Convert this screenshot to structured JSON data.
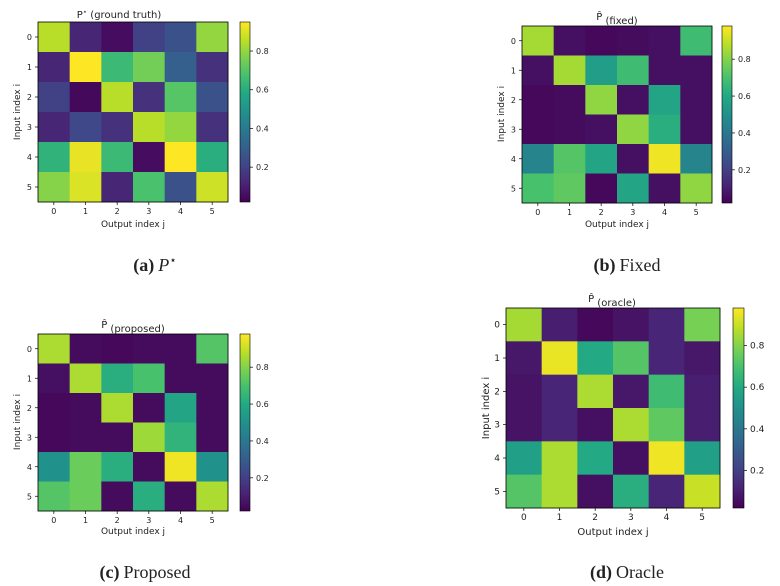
{
  "chart_data": [
    {
      "type": "heatmap",
      "panel": "a",
      "title": "P⋆ (ground truth)",
      "title_main": "P",
      "title_sup": "⋆",
      "title_rest": " (ground truth)",
      "xlabel": "Output index j",
      "ylabel": "Input index i",
      "x_ticks": [
        "0",
        "1",
        "2",
        "3",
        "4",
        "5"
      ],
      "y_ticks": [
        "0",
        "1",
        "2",
        "3",
        "4",
        "5"
      ],
      "colorbar_ticks": [
        0.2,
        0.4,
        0.6,
        0.8
      ],
      "colorbar_labels": [
        "0.2",
        "0.4",
        "0.6",
        "0.8"
      ],
      "vmin": 0.02,
      "vmax": 0.95,
      "values": [
        [
          0.85,
          0.12,
          0.05,
          0.2,
          0.25,
          0.8
        ],
        [
          0.12,
          0.95,
          0.65,
          0.75,
          0.3,
          0.15
        ],
        [
          0.2,
          0.04,
          0.85,
          0.15,
          0.7,
          0.25
        ],
        [
          0.12,
          0.22,
          0.15,
          0.85,
          0.8,
          0.15
        ],
        [
          0.62,
          0.92,
          0.65,
          0.05,
          0.95,
          0.6
        ],
        [
          0.78,
          0.9,
          0.12,
          0.68,
          0.25,
          0.88
        ]
      ],
      "caption_letter": "(a)",
      "caption_text": "P",
      "caption_sup": "⋆"
    },
    {
      "type": "heatmap",
      "panel": "b",
      "title": "P̂ (fixed)",
      "title_main": "P̂",
      "title_sup": "",
      "title_rest": " (fixed)",
      "xlabel": "Output index j",
      "ylabel": "Input index i",
      "x_ticks": [
        "0",
        "1",
        "2",
        "3",
        "4",
        "5"
      ],
      "y_ticks": [
        "0",
        "1",
        "2",
        "3",
        "4",
        "5"
      ],
      "colorbar_ticks": [
        0.2,
        0.4,
        0.6,
        0.8
      ],
      "colorbar_labels": [
        "0.2",
        "0.4",
        "0.6",
        "0.8"
      ],
      "vmin": 0.02,
      "vmax": 0.98,
      "values": [
        [
          0.85,
          0.06,
          0.04,
          0.05,
          0.06,
          0.68
        ],
        [
          0.06,
          0.85,
          0.55,
          0.68,
          0.06,
          0.06
        ],
        [
          0.04,
          0.05,
          0.82,
          0.06,
          0.58,
          0.06
        ],
        [
          0.04,
          0.05,
          0.06,
          0.82,
          0.62,
          0.06
        ],
        [
          0.45,
          0.72,
          0.58,
          0.06,
          0.96,
          0.45
        ],
        [
          0.7,
          0.74,
          0.04,
          0.58,
          0.06,
          0.82
        ]
      ],
      "caption_letter": "(b)",
      "caption_text": "Fixed",
      "caption_sup": ""
    },
    {
      "type": "heatmap",
      "panel": "c",
      "title": "P̂ (proposed)",
      "title_main": "P̂",
      "title_sup": "",
      "title_rest": " (proposed)",
      "xlabel": "Output index j",
      "ylabel": "Input index i",
      "x_ticks": [
        "0",
        "1",
        "2",
        "3",
        "4",
        "5"
      ],
      "y_ticks": [
        "0",
        "1",
        "2",
        "3",
        "4",
        "5"
      ],
      "colorbar_ticks": [
        0.2,
        0.4,
        0.6,
        0.8
      ],
      "colorbar_labels": [
        "0.2",
        "0.4",
        "0.6",
        "0.8"
      ],
      "vmin": 0.02,
      "vmax": 0.98,
      "values": [
        [
          0.86,
          0.05,
          0.04,
          0.05,
          0.05,
          0.72
        ],
        [
          0.06,
          0.86,
          0.62,
          0.7,
          0.05,
          0.05
        ],
        [
          0.04,
          0.05,
          0.86,
          0.05,
          0.58,
          0.05
        ],
        [
          0.04,
          0.05,
          0.05,
          0.84,
          0.64,
          0.05
        ],
        [
          0.5,
          0.76,
          0.62,
          0.05,
          0.96,
          0.5
        ],
        [
          0.72,
          0.76,
          0.05,
          0.62,
          0.05,
          0.86
        ]
      ],
      "caption_letter": "(c)",
      "caption_text": "Proposed",
      "caption_sup": ""
    },
    {
      "type": "heatmap",
      "panel": "d",
      "title": "P̂ (oracle)",
      "title_main": "P̂",
      "title_sup": "",
      "title_rest": " (oracle)",
      "xlabel": "Output index j",
      "ylabel": "Input index i",
      "x_ticks": [
        "0",
        "1",
        "2",
        "3",
        "4",
        "5"
      ],
      "y_ticks": [
        "0",
        "1",
        "2",
        "3",
        "4",
        "5"
      ],
      "colorbar_ticks": [
        0.2,
        0.4,
        0.6,
        0.8
      ],
      "colorbar_labels": [
        "0.2",
        "0.4",
        "0.6",
        "0.8"
      ],
      "vmin": 0.02,
      "vmax": 0.98,
      "values": [
        [
          0.85,
          0.1,
          0.04,
          0.07,
          0.12,
          0.78
        ],
        [
          0.08,
          0.95,
          0.6,
          0.72,
          0.12,
          0.08
        ],
        [
          0.07,
          0.12,
          0.86,
          0.08,
          0.68,
          0.1
        ],
        [
          0.07,
          0.12,
          0.06,
          0.86,
          0.74,
          0.1
        ],
        [
          0.56,
          0.86,
          0.6,
          0.06,
          0.96,
          0.56
        ],
        [
          0.72,
          0.86,
          0.06,
          0.62,
          0.12,
          0.9
        ]
      ],
      "caption_letter": "(d)",
      "caption_text": "Oracle",
      "caption_sup": ""
    }
  ]
}
